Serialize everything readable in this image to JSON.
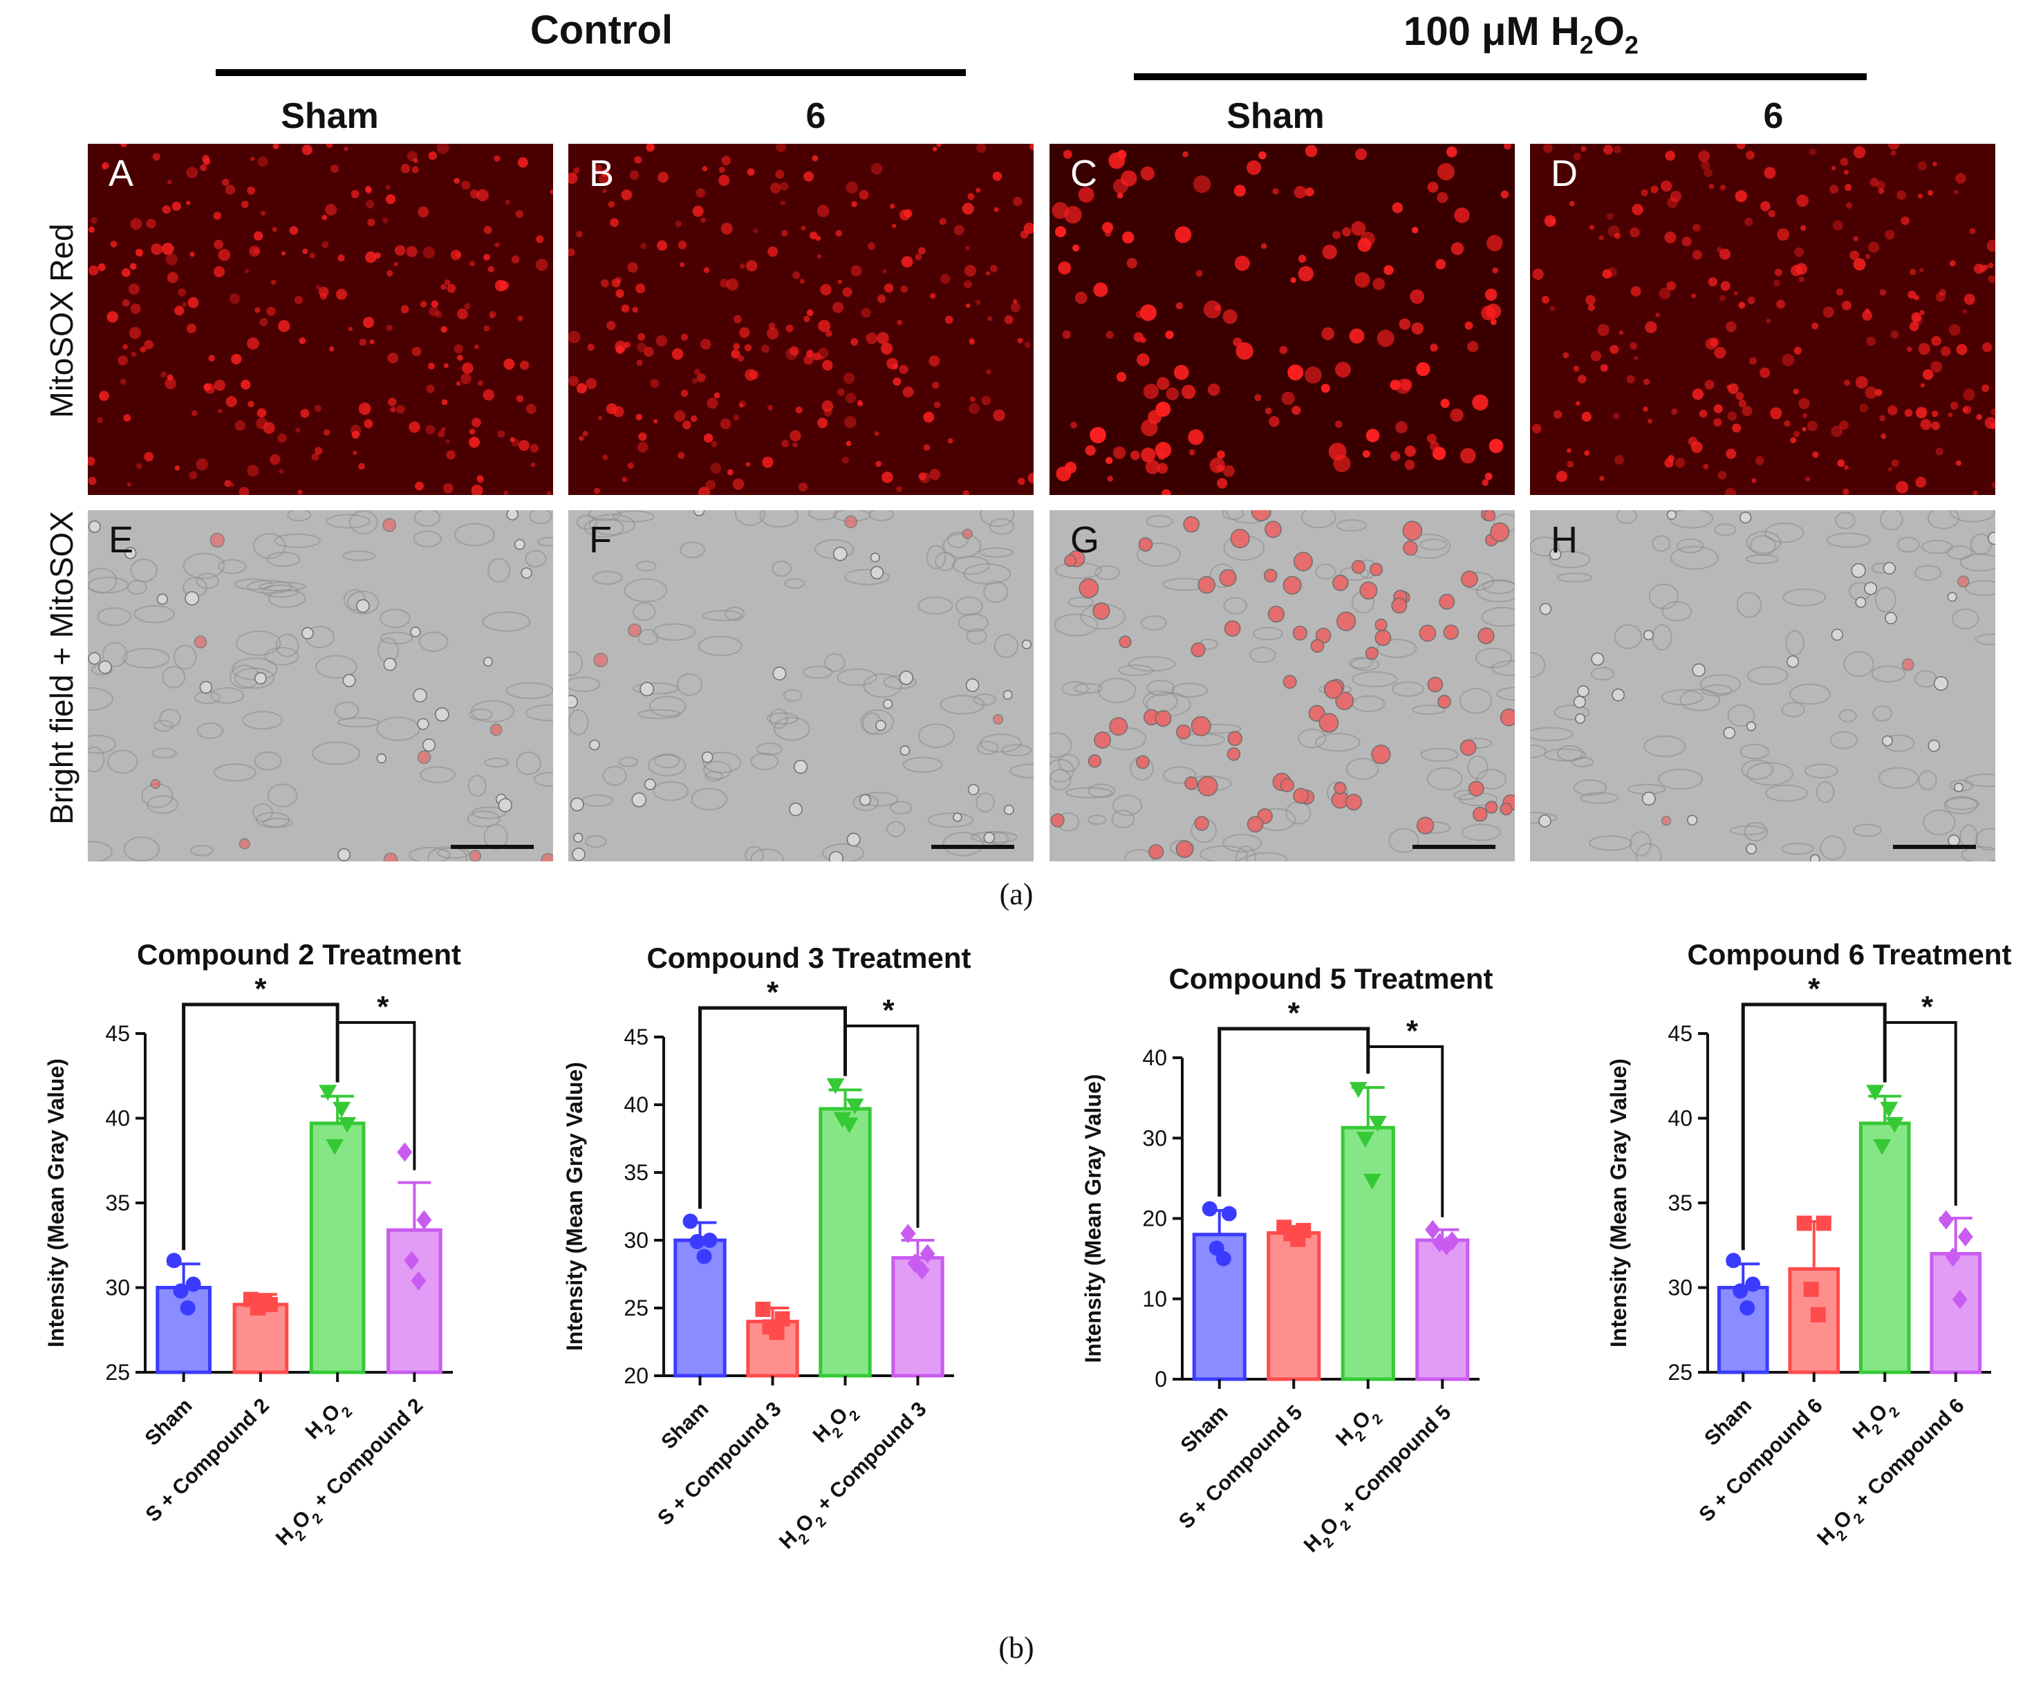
{
  "figure": {
    "group_headers": {
      "control": "Control",
      "h2o2_prefix": "100 μM H",
      "h2o2_sub1": "2",
      "h2o2_mid": "O",
      "h2o2_sub2": "2"
    },
    "column_headers": [
      "Sham",
      "6",
      "Sham",
      "6"
    ],
    "row_labels": [
      "MitoSOX Red",
      "Bright field + MitoSOX"
    ],
    "panel_letters_top": [
      "A",
      "B",
      "C",
      "D"
    ],
    "panel_letters_bottom": [
      "E",
      "F",
      "G",
      "H"
    ],
    "caption_a": "(a)",
    "caption_b": "(b)",
    "colors": {
      "sham": "#3b3bff",
      "s_compound": "#ff4b4b",
      "h2o2": "#36c936",
      "h2o2_compound": "#c95cf0",
      "fluor_bg": "#4a0000",
      "fluor_cell": "#ff2020",
      "bf_bg": "#b8b8b8"
    }
  },
  "chart_data": [
    {
      "type": "bar",
      "title": "Compound 2 Treatment",
      "ylabel": "Intensity (Mean Gray Value)",
      "ylim": [
        25,
        45
      ],
      "yticks": [
        "25",
        "30",
        "35",
        "40",
        "45"
      ],
      "categories": [
        "Sham",
        "S + Compound 2",
        "H2O2",
        "H2O2 + Compound 2"
      ],
      "values": [
        30.0,
        29.0,
        39.7,
        33.4
      ],
      "errors": [
        1.4,
        0.6,
        1.6,
        2.8
      ],
      "points": [
        [
          31.6,
          30.2,
          29.8,
          28.8
        ],
        [
          29.3,
          29.0,
          28.8,
          29.2
        ],
        [
          41.6,
          39.7,
          38.4,
          40.6
        ],
        [
          38.0,
          34.0,
          31.6,
          30.4
        ]
      ],
      "significance": [
        "*",
        "*"
      ]
    },
    {
      "type": "bar",
      "title": "Compound 3 Treatment",
      "ylabel": "Intensity (Mean Gray Value)",
      "ylim": [
        20,
        45
      ],
      "yticks": [
        "20",
        "25",
        "30",
        "35",
        "40",
        "45"
      ],
      "categories": [
        "Sham",
        "S + Compound 3",
        "H2O2",
        "H2O2 + Compound 3"
      ],
      "values": [
        30.0,
        24.0,
        39.7,
        28.7
      ],
      "errors": [
        1.3,
        1.0,
        1.4,
        1.3
      ],
      "points": [
        [
          31.4,
          30.0,
          29.9,
          28.8
        ],
        [
          24.9,
          24.2,
          23.6,
          23.2
        ],
        [
          41.5,
          40.0,
          39.0,
          38.6
        ],
        [
          30.5,
          29.0,
          28.3,
          27.8
        ]
      ],
      "significance": [
        "*",
        "*"
      ]
    },
    {
      "type": "bar",
      "title": "Compound 5 Treatment",
      "ylabel": "Intensity (Mean Gray Value)",
      "ylim": [
        0,
        40
      ],
      "yticks": [
        "0",
        "10",
        "20",
        "30",
        "40"
      ],
      "categories": [
        "Sham",
        "S + Compound 5",
        "H2O2",
        "H2O2 + Compound 5"
      ],
      "values": [
        18.0,
        18.2,
        31.3,
        17.3
      ],
      "errors": [
        3.0,
        0.8,
        5.0,
        1.3
      ],
      "points": [
        [
          21.2,
          20.6,
          16.3,
          15.0
        ],
        [
          18.9,
          18.5,
          18.1,
          17.4
        ],
        [
          36.2,
          32.0,
          30.0,
          24.8
        ],
        [
          18.6,
          17.2,
          17.0,
          16.6
        ]
      ],
      "significance": [
        "*",
        "*"
      ]
    },
    {
      "type": "bar",
      "title": "Compound 6 Treatment",
      "ylabel": "Intensity (Mean Gray Value)",
      "ylim": [
        25,
        45
      ],
      "yticks": [
        "25",
        "30",
        "35",
        "40",
        "45"
      ],
      "categories": [
        "Sham",
        "S + Compound 6",
        "H2O2",
        "H2O2 + Compound 6"
      ],
      "values": [
        30.0,
        31.1,
        39.7,
        32.0
      ],
      "errors": [
        1.4,
        2.8,
        1.6,
        2.1
      ],
      "points": [
        [
          31.6,
          30.2,
          29.8,
          28.8
        ],
        [
          33.8,
          33.8,
          29.9,
          28.4
        ],
        [
          41.6,
          39.7,
          38.4,
          40.6
        ],
        [
          34.0,
          33.0,
          31.8,
          29.3
        ]
      ],
      "significance": [
        "*",
        "*"
      ]
    }
  ]
}
